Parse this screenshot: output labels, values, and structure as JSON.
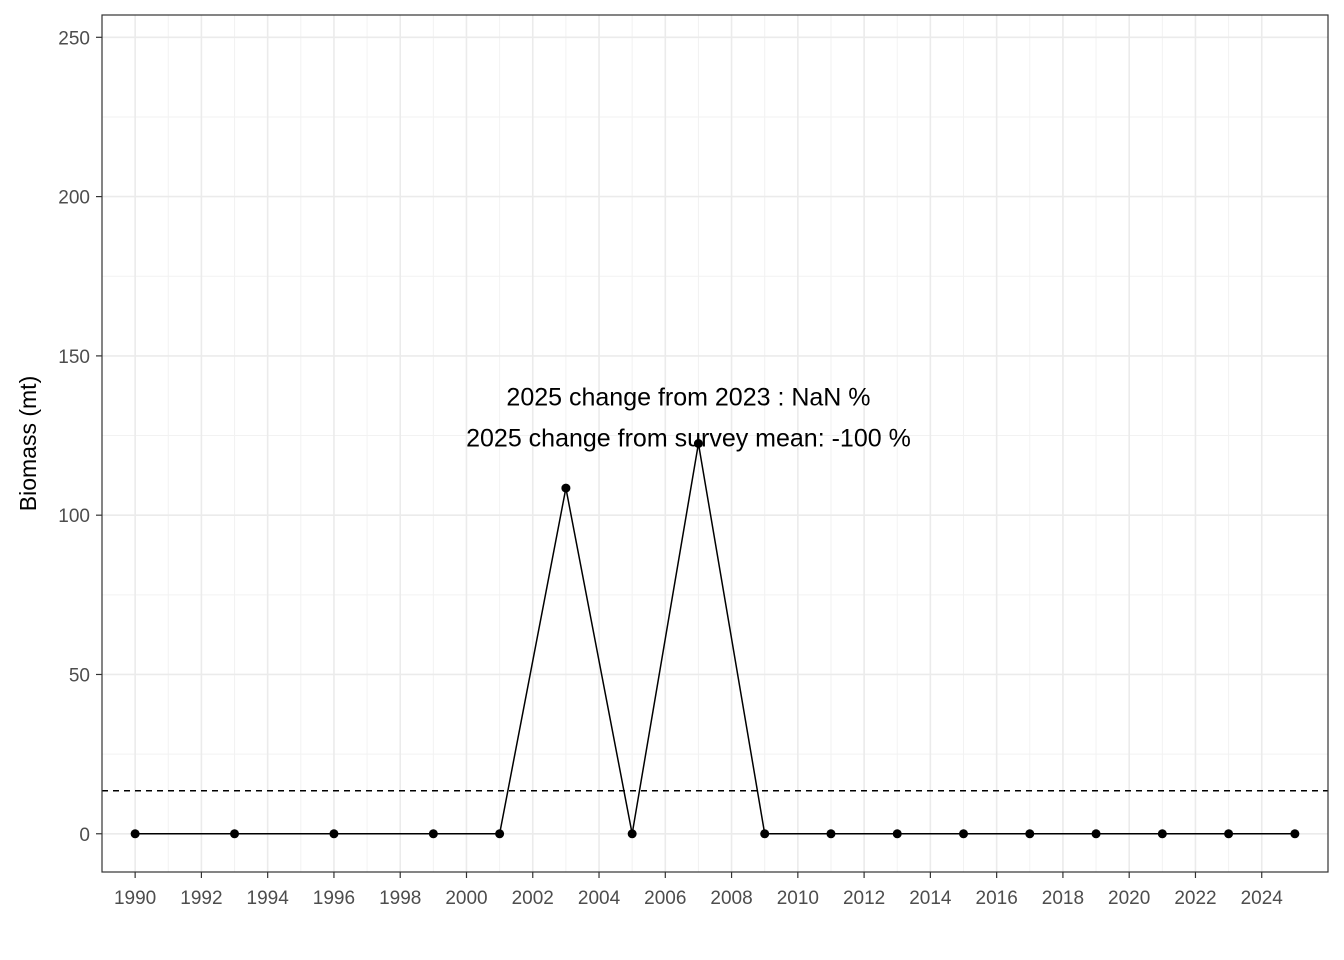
{
  "chart_data": {
    "type": "line",
    "title": "",
    "xlabel": "",
    "ylabel": "Biomass (mt)",
    "xlim": [
      1989,
      2026
    ],
    "ylim": [
      -12,
      257
    ],
    "x_ticks": [
      1990,
      1992,
      1994,
      1996,
      1998,
      2000,
      2002,
      2004,
      2006,
      2008,
      2010,
      2012,
      2014,
      2016,
      2018,
      2020,
      2022,
      2024
    ],
    "y_ticks": [
      0,
      50,
      100,
      150,
      200,
      250
    ],
    "grid": true,
    "series": [
      {
        "x": [
          1990,
          1993,
          1996,
          1999,
          2001,
          2003,
          2005,
          2007,
          2009,
          2011,
          2013,
          2015,
          2017,
          2019,
          2021,
          2023,
          2025
        ],
        "y": [
          0,
          0,
          0,
          0,
          0,
          108.5,
          0,
          122.5,
          0,
          0,
          0,
          0,
          0,
          0,
          0,
          0,
          0
        ]
      }
    ],
    "reference_line": {
      "y": 13.5,
      "style": "dashed"
    },
    "annotations": [
      {
        "text": "2025  change from  2023 :  NaN %",
        "x": 2006.7,
        "y": 134.5
      },
      {
        "text": "2025  change from survey mean:  -100 %",
        "x": 2006.7,
        "y": 121.5
      }
    ]
  }
}
